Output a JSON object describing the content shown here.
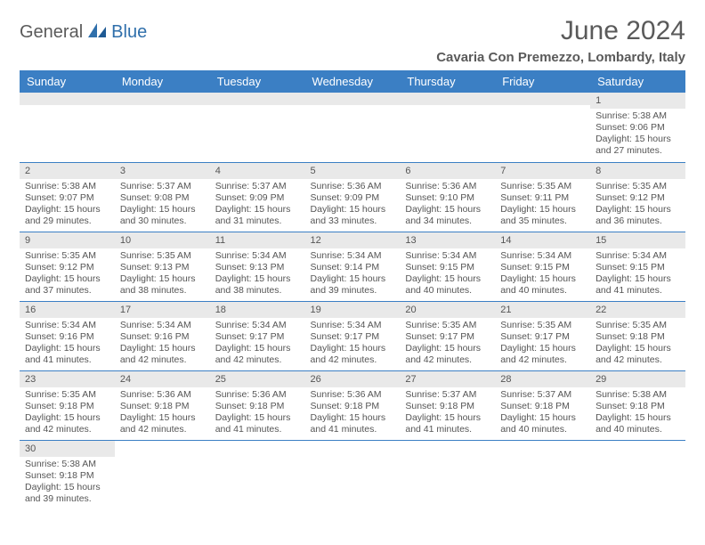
{
  "logo": {
    "part1": "General",
    "part2": "Blue"
  },
  "title": "June 2024",
  "location": "Cavaria Con Premezzo, Lombardy, Italy",
  "colors": {
    "header_bg": "#3b7fc4",
    "header_text": "#ffffff",
    "daynum_bg": "#e9e9e9",
    "border": "#3b7fc4",
    "logo_gray": "#5a5a5a",
    "logo_blue": "#2f6fab",
    "text": "#555555"
  },
  "type": "calendar",
  "weekdays": [
    "Sunday",
    "Monday",
    "Tuesday",
    "Wednesday",
    "Thursday",
    "Friday",
    "Saturday"
  ],
  "weeks": [
    [
      null,
      null,
      null,
      null,
      null,
      null,
      {
        "n": "1",
        "sunrise": "5:38 AM",
        "sunset": "9:06 PM",
        "daylight": "15 hours and 27 minutes."
      }
    ],
    [
      {
        "n": "2",
        "sunrise": "5:38 AM",
        "sunset": "9:07 PM",
        "daylight": "15 hours and 29 minutes."
      },
      {
        "n": "3",
        "sunrise": "5:37 AM",
        "sunset": "9:08 PM",
        "daylight": "15 hours and 30 minutes."
      },
      {
        "n": "4",
        "sunrise": "5:37 AM",
        "sunset": "9:09 PM",
        "daylight": "15 hours and 31 minutes."
      },
      {
        "n": "5",
        "sunrise": "5:36 AM",
        "sunset": "9:09 PM",
        "daylight": "15 hours and 33 minutes."
      },
      {
        "n": "6",
        "sunrise": "5:36 AM",
        "sunset": "9:10 PM",
        "daylight": "15 hours and 34 minutes."
      },
      {
        "n": "7",
        "sunrise": "5:35 AM",
        "sunset": "9:11 PM",
        "daylight": "15 hours and 35 minutes."
      },
      {
        "n": "8",
        "sunrise": "5:35 AM",
        "sunset": "9:12 PM",
        "daylight": "15 hours and 36 minutes."
      }
    ],
    [
      {
        "n": "9",
        "sunrise": "5:35 AM",
        "sunset": "9:12 PM",
        "daylight": "15 hours and 37 minutes."
      },
      {
        "n": "10",
        "sunrise": "5:35 AM",
        "sunset": "9:13 PM",
        "daylight": "15 hours and 38 minutes."
      },
      {
        "n": "11",
        "sunrise": "5:34 AM",
        "sunset": "9:13 PM",
        "daylight": "15 hours and 38 minutes."
      },
      {
        "n": "12",
        "sunrise": "5:34 AM",
        "sunset": "9:14 PM",
        "daylight": "15 hours and 39 minutes."
      },
      {
        "n": "13",
        "sunrise": "5:34 AM",
        "sunset": "9:15 PM",
        "daylight": "15 hours and 40 minutes."
      },
      {
        "n": "14",
        "sunrise": "5:34 AM",
        "sunset": "9:15 PM",
        "daylight": "15 hours and 40 minutes."
      },
      {
        "n": "15",
        "sunrise": "5:34 AM",
        "sunset": "9:15 PM",
        "daylight": "15 hours and 41 minutes."
      }
    ],
    [
      {
        "n": "16",
        "sunrise": "5:34 AM",
        "sunset": "9:16 PM",
        "daylight": "15 hours and 41 minutes."
      },
      {
        "n": "17",
        "sunrise": "5:34 AM",
        "sunset": "9:16 PM",
        "daylight": "15 hours and 42 minutes."
      },
      {
        "n": "18",
        "sunrise": "5:34 AM",
        "sunset": "9:17 PM",
        "daylight": "15 hours and 42 minutes."
      },
      {
        "n": "19",
        "sunrise": "5:34 AM",
        "sunset": "9:17 PM",
        "daylight": "15 hours and 42 minutes."
      },
      {
        "n": "20",
        "sunrise": "5:35 AM",
        "sunset": "9:17 PM",
        "daylight": "15 hours and 42 minutes."
      },
      {
        "n": "21",
        "sunrise": "5:35 AM",
        "sunset": "9:17 PM",
        "daylight": "15 hours and 42 minutes."
      },
      {
        "n": "22",
        "sunrise": "5:35 AM",
        "sunset": "9:18 PM",
        "daylight": "15 hours and 42 minutes."
      }
    ],
    [
      {
        "n": "23",
        "sunrise": "5:35 AM",
        "sunset": "9:18 PM",
        "daylight": "15 hours and 42 minutes."
      },
      {
        "n": "24",
        "sunrise": "5:36 AM",
        "sunset": "9:18 PM",
        "daylight": "15 hours and 42 minutes."
      },
      {
        "n": "25",
        "sunrise": "5:36 AM",
        "sunset": "9:18 PM",
        "daylight": "15 hours and 41 minutes."
      },
      {
        "n": "26",
        "sunrise": "5:36 AM",
        "sunset": "9:18 PM",
        "daylight": "15 hours and 41 minutes."
      },
      {
        "n": "27",
        "sunrise": "5:37 AM",
        "sunset": "9:18 PM",
        "daylight": "15 hours and 41 minutes."
      },
      {
        "n": "28",
        "sunrise": "5:37 AM",
        "sunset": "9:18 PM",
        "daylight": "15 hours and 40 minutes."
      },
      {
        "n": "29",
        "sunrise": "5:38 AM",
        "sunset": "9:18 PM",
        "daylight": "15 hours and 40 minutes."
      }
    ],
    [
      {
        "n": "30",
        "sunrise": "5:38 AM",
        "sunset": "9:18 PM",
        "daylight": "15 hours and 39 minutes."
      },
      null,
      null,
      null,
      null,
      null,
      null
    ]
  ],
  "labels": {
    "sunrise": "Sunrise:",
    "sunset": "Sunset:",
    "daylight": "Daylight:"
  }
}
